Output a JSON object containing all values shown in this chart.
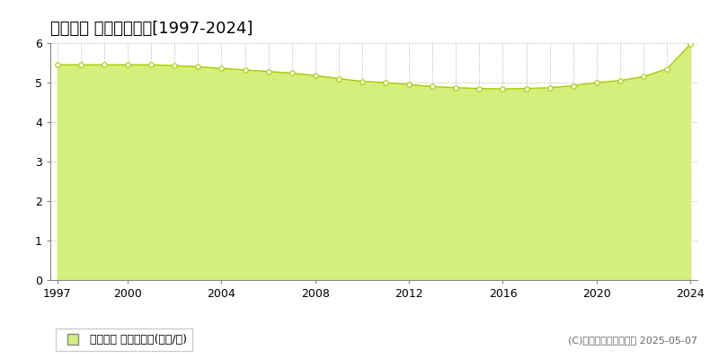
{
  "title": "宜野座村 基準地価推移[1997-2024]",
  "years": [
    1997,
    1998,
    1999,
    2000,
    2001,
    2002,
    2003,
    2004,
    2005,
    2006,
    2007,
    2008,
    2009,
    2010,
    2011,
    2012,
    2013,
    2014,
    2015,
    2016,
    2017,
    2018,
    2019,
    2020,
    2021,
    2022,
    2023,
    2024
  ],
  "values": [
    5.45,
    5.45,
    5.45,
    5.45,
    5.45,
    5.43,
    5.4,
    5.36,
    5.32,
    5.28,
    5.24,
    5.18,
    5.1,
    5.03,
    5.0,
    4.95,
    4.9,
    4.87,
    4.85,
    4.84,
    4.85,
    4.87,
    4.92,
    5.0,
    5.05,
    5.15,
    5.35,
    5.97
  ],
  "fill_color": "#d4ef7b",
  "line_color": "#aacc00",
  "marker_color": "#ffffff",
  "marker_edge_color": "#aacc00",
  "background_color": "#ffffff",
  "grid_color": "#aaaaaa",
  "xlim": [
    1997,
    2024
  ],
  "ylim": [
    0,
    6
  ],
  "yticks": [
    0,
    1,
    2,
    3,
    4,
    5,
    6
  ],
  "xticks": [
    1997,
    2000,
    2004,
    2008,
    2012,
    2016,
    2020,
    2024
  ],
  "legend_label": "基準地価 平均坪単価(万円/坪)",
  "copyright_text": "(C)土地価格ドットコム 2025-05-07",
  "title_fontsize": 13,
  "axis_fontsize": 9,
  "legend_fontsize": 9,
  "copyright_fontsize": 8
}
